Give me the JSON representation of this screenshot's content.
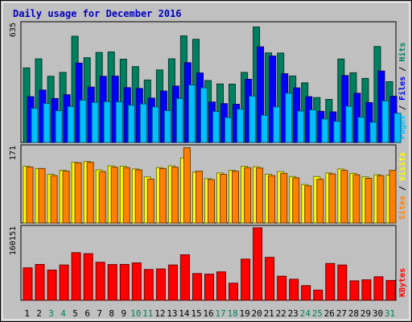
{
  "chart_data": {
    "type": "bar",
    "title": "Daily usage for December 2016",
    "days": [
      "1",
      "2",
      "3",
      "4",
      "5",
      "6",
      "7",
      "8",
      "9",
      "10",
      "11",
      "12",
      "13",
      "14",
      "15",
      "16",
      "17",
      "18",
      "19",
      "20",
      "21",
      "22",
      "23",
      "24",
      "25",
      "26",
      "27",
      "28",
      "29",
      "30",
      "31"
    ],
    "weekend_days": [
      "3",
      "4",
      "10",
      "11",
      "17",
      "18",
      "24",
      "25",
      "31"
    ],
    "panels": [
      {
        "name": "hits-files-pages",
        "ymax_label": "635",
        "ymax": 635,
        "label_parts": [
          {
            "text": "Pages",
            "color": "#00c0ff"
          },
          {
            "text": " / ",
            "color": "#000000"
          },
          {
            "text": "Files",
            "color": "#0000ff"
          },
          {
            "text": " / ",
            "color": "#000000"
          },
          {
            "text": "Hits",
            "color": "#008060"
          }
        ],
        "series": [
          {
            "name": "Hits",
            "color": "#008060",
            "values": [
              400,
              449,
              355,
              376,
              570,
              455,
              483,
              486,
              447,
              407,
              335,
              389,
              449,
              572,
              554,
              332,
              314,
              313,
              376,
              620,
              481,
              480,
              357,
              320,
              241,
              231,
              448,
              374,
              344,
              515,
              326
            ]
          },
          {
            "name": "Files",
            "color": "#0000ff",
            "values": [
              246,
              281,
              236,
              256,
              426,
              297,
              355,
              356,
              294,
              290,
              238,
              276,
              303,
              428,
              373,
              217,
              208,
              205,
              339,
              513,
              464,
              369,
              293,
              246,
              167,
              164,
              359,
              264,
              214,
              383,
              248
            ]
          },
          {
            "name": "Pages",
            "color": "#00c0ff",
            "values": [
              183,
              209,
              170,
              193,
              227,
              215,
              219,
              218,
              200,
              207,
              191,
              171,
              236,
              309,
              293,
              166,
              134,
              179,
              249,
              146,
              191,
              264,
              169,
              175,
              126,
              113,
              195,
              135,
              109,
              223,
              157
            ]
          }
        ]
      },
      {
        "name": "visits-sites",
        "ymax_label": "171",
        "ymax": 171,
        "label_parts": [
          {
            "text": "Sites",
            "color": "#ff8000"
          },
          {
            "text": " / ",
            "color": "#000000"
          },
          {
            "text": "Visits",
            "color": "#ffff00"
          }
        ],
        "series": [
          {
            "name": "Visits",
            "color": "#ffff00",
            "values": [
              128,
              123,
              110,
              119,
              137,
              139,
              120,
              129,
              128,
              122,
              104,
              125,
              129,
              147,
              115,
              100,
              113,
              119,
              128,
              127,
              110,
              116,
              105,
              87,
              105,
              113,
              122,
              112,
              104,
              109,
              108
            ]
          },
          {
            "name": "Sites",
            "color": "#ff8000",
            "values": [
              126,
              123,
              107,
              117,
              136,
              137,
              116,
              126,
              125,
              120,
              99,
              123,
              126,
              170,
              117,
              98,
              110,
              117,
              125,
              124,
              107,
              112,
              102,
              84,
              99,
              111,
              119,
              109,
              101,
              107,
              119
            ]
          }
        ]
      },
      {
        "name": "kbytes",
        "ymax_label": "160151",
        "ymax": 160151,
        "label_parts": [
          {
            "text": "KBytes",
            "color": "#ff0000"
          }
        ],
        "series": [
          {
            "name": "KBytes",
            "color": "#ff0000",
            "values": [
              71690,
              79193,
              66655,
              77949,
              105077,
              103079,
              84021,
              78941,
              79193,
              82502,
              67916,
              69172,
              77949,
              100569,
              59117,
              57614,
              62880,
              37801,
              91000,
              160151,
              94776,
              53121,
              46483,
              32444,
              22386,
              81254,
              77949,
              42826,
              45149,
              51884,
              43830
            ]
          }
        ]
      }
    ]
  }
}
